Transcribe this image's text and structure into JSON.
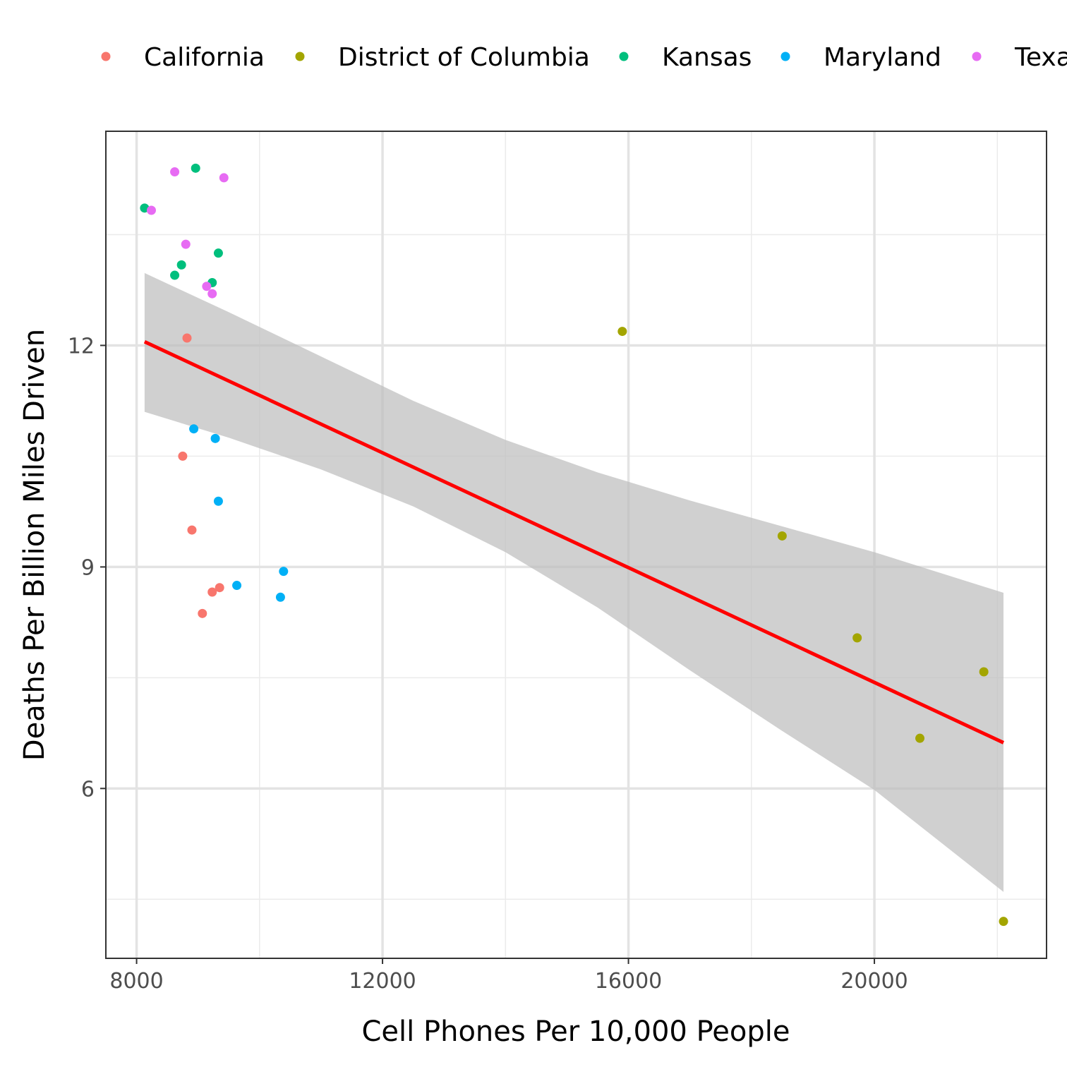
{
  "chart_data": {
    "type": "scatter",
    "title": "",
    "xlabel": "Cell Phones Per 10,000 People",
    "ylabel": "Deaths Per Billion Miles Driven",
    "xlim": [
      7500,
      22800
    ],
    "ylim": [
      3.7,
      14.9
    ],
    "x_ticks": [
      8000,
      12000,
      16000,
      20000
    ],
    "y_ticks": [
      6,
      9,
      12
    ],
    "grid": true,
    "legend_position": "top",
    "legend": [
      {
        "name": "California",
        "color": "#F8766D"
      },
      {
        "name": "District of Columbia",
        "color": "#A3A500"
      },
      {
        "name": "Kansas",
        "color": "#00BF7D"
      },
      {
        "name": "Maryland",
        "color": "#00B0F6"
      },
      {
        "name": "Texas",
        "color": "#E76BF3"
      }
    ],
    "series": [
      {
        "name": "California",
        "color": "#F8766D",
        "points": [
          {
            "x": 8820,
            "y": 12.1
          },
          {
            "x": 8750,
            "y": 10.5
          },
          {
            "x": 8900,
            "y": 9.5
          },
          {
            "x": 9350,
            "y": 8.72
          },
          {
            "x": 9230,
            "y": 8.66
          },
          {
            "x": 9070,
            "y": 8.37
          }
        ]
      },
      {
        "name": "District of Columbia",
        "color": "#A3A500",
        "points": [
          {
            "x": 15900,
            "y": 12.19
          },
          {
            "x": 18500,
            "y": 9.42
          },
          {
            "x": 19720,
            "y": 8.04
          },
          {
            "x": 21780,
            "y": 7.58
          },
          {
            "x": 20740,
            "y": 6.68
          },
          {
            "x": 22100,
            "y": 4.2
          }
        ]
      },
      {
        "name": "Kansas",
        "color": "#00BF7D",
        "points": [
          {
            "x": 8960,
            "y": 14.4
          },
          {
            "x": 8130,
            "y": 13.86
          },
          {
            "x": 9330,
            "y": 13.25
          },
          {
            "x": 8730,
            "y": 13.09
          },
          {
            "x": 8620,
            "y": 12.95
          },
          {
            "x": 9230,
            "y": 12.85
          }
        ]
      },
      {
        "name": "Maryland",
        "color": "#00B0F6",
        "points": [
          {
            "x": 8930,
            "y": 10.87
          },
          {
            "x": 9280,
            "y": 10.74
          },
          {
            "x": 9330,
            "y": 9.89
          },
          {
            "x": 10390,
            "y": 8.94
          },
          {
            "x": 9630,
            "y": 8.75
          },
          {
            "x": 10340,
            "y": 8.59
          }
        ]
      },
      {
        "name": "Texas",
        "color": "#E76BF3",
        "points": [
          {
            "x": 8620,
            "y": 14.35
          },
          {
            "x": 9420,
            "y": 14.27
          },
          {
            "x": 8240,
            "y": 13.83
          },
          {
            "x": 8800,
            "y": 13.37
          },
          {
            "x": 9140,
            "y": 12.8
          },
          {
            "x": 9230,
            "y": 12.7
          }
        ]
      }
    ],
    "trend_line": {
      "color": "#FF0000",
      "points": [
        {
          "x": 8130,
          "y": 12.05
        },
        {
          "x": 22100,
          "y": 6.62
        }
      ]
    },
    "confidence_band": {
      "color": "#BEBEBE",
      "upper": [
        {
          "x": 8130,
          "y": 12.98
        },
        {
          "x": 9500,
          "y": 12.45
        },
        {
          "x": 11000,
          "y": 11.85
        },
        {
          "x": 12500,
          "y": 11.25
        },
        {
          "x": 14000,
          "y": 10.72
        },
        {
          "x": 15500,
          "y": 10.28
        },
        {
          "x": 17000,
          "y": 9.9
        },
        {
          "x": 18500,
          "y": 9.55
        },
        {
          "x": 20000,
          "y": 9.2
        },
        {
          "x": 22100,
          "y": 8.65
        }
      ],
      "lower": [
        {
          "x": 8130,
          "y": 11.1
        },
        {
          "x": 9500,
          "y": 10.75
        },
        {
          "x": 11000,
          "y": 10.32
        },
        {
          "x": 12500,
          "y": 9.82
        },
        {
          "x": 14000,
          "y": 9.2
        },
        {
          "x": 15500,
          "y": 8.45
        },
        {
          "x": 17000,
          "y": 7.6
        },
        {
          "x": 18500,
          "y": 6.78
        },
        {
          "x": 20000,
          "y": 5.98
        },
        {
          "x": 22100,
          "y": 4.6
        }
      ]
    }
  }
}
